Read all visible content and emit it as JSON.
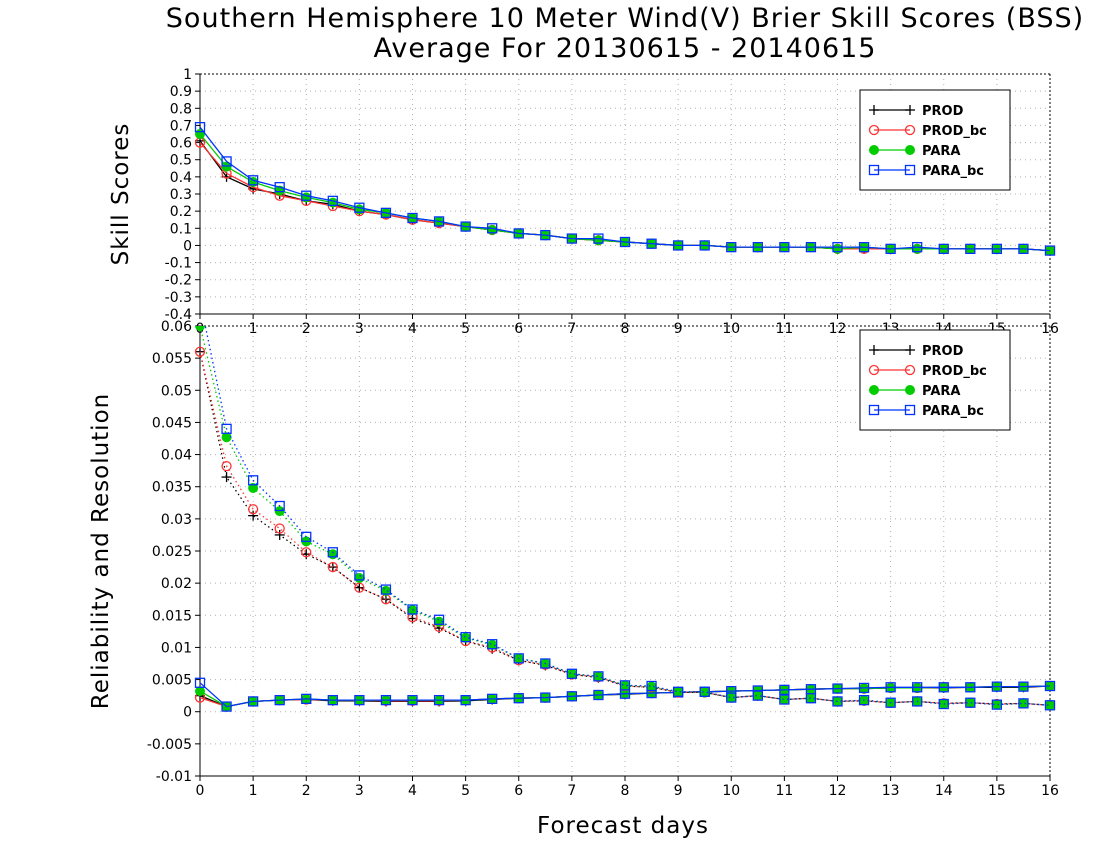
{
  "title": {
    "line1": "Southern Hemisphere 10 Meter Wind(V) Brier Skill Scores (BSS)",
    "line2": "Average For 20130615 - 20140615"
  },
  "chart_data": [
    {
      "type": "line",
      "panel": "top",
      "ylabel": "Skill Scores",
      "xlim": [
        0,
        16
      ],
      "ylim": [
        -0.4,
        1
      ],
      "yticks": [
        -0.4,
        -0.3,
        -0.2,
        -0.1,
        0,
        0.1,
        0.2,
        0.3,
        0.4,
        0.5,
        0.6,
        0.7,
        0.8,
        0.9,
        1
      ],
      "ytick_labels": [
        "-0.4",
        "-0.3",
        "-0.2",
        "-0.1",
        "0",
        "0.1",
        "0.2",
        "0.3",
        "0.4",
        "0.5",
        "0.6",
        "0.7",
        "0.8",
        "0.9",
        "1"
      ],
      "xticks": [
        0,
        1,
        2,
        3,
        4,
        5,
        6,
        7,
        8,
        9,
        10,
        11,
        12,
        13,
        14,
        15,
        16
      ],
      "xtick_labels": [
        "0",
        "1",
        "2",
        "3",
        "4",
        "5",
        "6",
        "7",
        "8",
        "9",
        "10",
        "11",
        "12",
        "13",
        "14",
        "15",
        "16"
      ],
      "grid": true,
      "legend_position": "top-right",
      "x": [
        0,
        0.5,
        1,
        1.5,
        2,
        2.5,
        3,
        3.5,
        4,
        4.5,
        5,
        5.5,
        6,
        6.5,
        7,
        7.5,
        8,
        8.5,
        9,
        9.5,
        10,
        10.5,
        11,
        11.5,
        12,
        12.5,
        13,
        13.5,
        14,
        14.5,
        15,
        15.5,
        16
      ],
      "series": [
        {
          "name": "PROD",
          "color": "#000000",
          "marker": "plus",
          "values": [
            0.61,
            0.4,
            0.33,
            0.3,
            0.26,
            0.24,
            0.2,
            0.18,
            0.15,
            0.13,
            0.11,
            0.09,
            0.07,
            0.06,
            0.04,
            0.03,
            0.02,
            0.01,
            0.0,
            0.0,
            -0.01,
            -0.01,
            -0.01,
            -0.01,
            -0.02,
            -0.02,
            -0.02,
            -0.02,
            -0.02,
            -0.02,
            -0.02,
            -0.02,
            -0.03
          ]
        },
        {
          "name": "PROD_bc",
          "color": "#ff3333",
          "marker": "open-circle",
          "values": [
            0.6,
            0.42,
            0.34,
            0.29,
            0.26,
            0.23,
            0.2,
            0.18,
            0.15,
            0.13,
            0.11,
            0.09,
            0.07,
            0.06,
            0.04,
            0.03,
            0.02,
            0.01,
            0.0,
            0.0,
            -0.01,
            -0.01,
            -0.01,
            -0.01,
            -0.02,
            -0.02,
            -0.02,
            -0.02,
            -0.02,
            -0.02,
            -0.02,
            -0.02,
            -0.03
          ]
        },
        {
          "name": "PARA",
          "color": "#00cc00",
          "marker": "filled-circle",
          "values": [
            0.65,
            0.46,
            0.37,
            0.32,
            0.28,
            0.25,
            0.21,
            0.19,
            0.16,
            0.14,
            0.11,
            0.09,
            0.07,
            0.06,
            0.04,
            0.03,
            0.02,
            0.01,
            0.0,
            0.0,
            -0.01,
            -0.01,
            -0.01,
            -0.01,
            -0.02,
            -0.01,
            -0.02,
            -0.02,
            -0.02,
            -0.02,
            -0.02,
            -0.02,
            -0.03
          ]
        },
        {
          "name": "PARA_bc",
          "color": "#0033ff",
          "marker": "open-square",
          "values": [
            0.69,
            0.49,
            0.38,
            0.34,
            0.29,
            0.26,
            0.22,
            0.19,
            0.16,
            0.14,
            0.11,
            0.1,
            0.07,
            0.06,
            0.04,
            0.04,
            0.02,
            0.01,
            0.0,
            0.0,
            -0.01,
            -0.01,
            -0.01,
            -0.01,
            -0.01,
            -0.01,
            -0.02,
            -0.01,
            -0.02,
            -0.02,
            -0.02,
            -0.02,
            -0.03
          ]
        }
      ]
    },
    {
      "type": "line",
      "panel": "bottom",
      "ylabel": "Reliability and Resolution",
      "xlabel": "Forecast days",
      "xlim": [
        0,
        16
      ],
      "ylim": [
        -0.01,
        0.06
      ],
      "yticks": [
        -0.01,
        -0.005,
        0,
        0.005,
        0.01,
        0.015,
        0.02,
        0.025,
        0.03,
        0.035,
        0.04,
        0.045,
        0.05,
        0.055,
        0.06
      ],
      "ytick_labels": [
        "-0.01",
        "-0.005",
        "0",
        "0.005",
        "0.01",
        "0.015",
        "0.02",
        "0.025",
        "0.03",
        "0.035",
        "0.04",
        "0.045",
        "0.05",
        "0.055",
        "0.06"
      ],
      "xticks": [
        0,
        1,
        2,
        3,
        4,
        5,
        6,
        7,
        8,
        9,
        10,
        11,
        12,
        13,
        14,
        15,
        16
      ],
      "xtick_labels": [
        "0",
        "1",
        "2",
        "3",
        "4",
        "5",
        "6",
        "7",
        "8",
        "9",
        "10",
        "11",
        "12",
        "13",
        "14",
        "15",
        "16"
      ],
      "grid": true,
      "legend_position": "top-right",
      "x": [
        0,
        0.5,
        1,
        1.5,
        2,
        2.5,
        3,
        3.5,
        4,
        4.5,
        5,
        5.5,
        6,
        6.5,
        7,
        7.5,
        8,
        8.5,
        9,
        9.5,
        10,
        10.5,
        11,
        11.5,
        12,
        12.5,
        13,
        13.5,
        14,
        14.5,
        15,
        15.5,
        16
      ],
      "series": [
        {
          "name": "PROD",
          "color": "#000000",
          "marker": "plus",
          "group": "reliability",
          "values": [
            0.0025,
            0.0008,
            0.0016,
            0.0018,
            0.0019,
            0.0017,
            0.0017,
            0.0016,
            0.0016,
            0.0016,
            0.0017,
            0.0019,
            0.0021,
            0.0022,
            0.0024,
            0.0026,
            0.0027,
            0.0029,
            0.003,
            0.0031,
            0.0032,
            0.0033,
            0.0034,
            0.0035,
            0.0036,
            0.0036,
            0.0037,
            0.0037,
            0.0037,
            0.0038,
            0.0038,
            0.0038,
            0.004
          ]
        },
        {
          "name": "PROD_bc",
          "color": "#ff3333",
          "marker": "open-circle",
          "group": "reliability",
          "values": [
            0.0022,
            0.0008,
            0.0016,
            0.0018,
            0.0019,
            0.0018,
            0.0018,
            0.0017,
            0.0017,
            0.0017,
            0.0018,
            0.002,
            0.0021,
            0.0022,
            0.0024,
            0.0026,
            0.0028,
            0.0029,
            0.003,
            0.0031,
            0.0032,
            0.0033,
            0.0034,
            0.0035,
            0.0036,
            0.0036,
            0.0037,
            0.0037,
            0.0038,
            0.0038,
            0.0039,
            0.0039,
            0.004
          ]
        },
        {
          "name": "PARA",
          "color": "#00cc00",
          "marker": "filled-circle",
          "group": "reliability",
          "values": [
            0.0032,
            0.0008,
            0.0016,
            0.0018,
            0.002,
            0.0018,
            0.0018,
            0.0018,
            0.0018,
            0.0018,
            0.0018,
            0.002,
            0.0021,
            0.0022,
            0.0024,
            0.0026,
            0.0028,
            0.0029,
            0.003,
            0.0031,
            0.0032,
            0.0033,
            0.0034,
            0.0035,
            0.0036,
            0.0036,
            0.0037,
            0.0037,
            0.0038,
            0.0038,
            0.0039,
            0.0039,
            0.004
          ]
        },
        {
          "name": "PARA_bc",
          "color": "#0033ff",
          "marker": "open-square",
          "group": "reliability",
          "values": [
            0.0045,
            0.0008,
            0.0016,
            0.0018,
            0.002,
            0.0018,
            0.0018,
            0.0018,
            0.0018,
            0.0018,
            0.0018,
            0.002,
            0.0021,
            0.0022,
            0.0024,
            0.0026,
            0.0028,
            0.0029,
            0.003,
            0.0031,
            0.0032,
            0.0033,
            0.0034,
            0.0035,
            0.0036,
            0.0037,
            0.0038,
            0.0038,
            0.0038,
            0.0038,
            0.0039,
            0.0039,
            0.004
          ]
        },
        {
          "name": "PROD",
          "color": "#000000",
          "marker": "plus",
          "group": "resolution",
          "values": [
            0.056,
            0.0365,
            0.0305,
            0.0275,
            0.0245,
            0.0225,
            0.0193,
            0.0175,
            0.0145,
            0.013,
            0.011,
            0.0098,
            0.008,
            0.0072,
            0.0058,
            0.0053,
            0.004,
            0.0038,
            0.003,
            0.003,
            0.0022,
            0.0025,
            0.0019,
            0.0021,
            0.0016,
            0.0017,
            0.0014,
            0.0016,
            0.0013,
            0.0014,
            0.0012,
            0.0013,
            0.001
          ]
        },
        {
          "name": "PROD_bc",
          "color": "#ff3333",
          "marker": "open-circle",
          "group": "resolution",
          "values": [
            0.056,
            0.0382,
            0.0315,
            0.0285,
            0.0248,
            0.0225,
            0.0193,
            0.0175,
            0.0147,
            0.0132,
            0.011,
            0.01,
            0.008,
            0.0073,
            0.0058,
            0.0054,
            0.004,
            0.0038,
            0.003,
            0.003,
            0.0022,
            0.0025,
            0.0019,
            0.0021,
            0.0016,
            0.0017,
            0.0014,
            0.0016,
            0.0013,
            0.0014,
            0.0012,
            0.0013,
            0.001
          ]
        },
        {
          "name": "PARA",
          "color": "#00cc00",
          "marker": "filled-circle",
          "group": "resolution",
          "values": [
            0.06,
            0.0427,
            0.0348,
            0.0312,
            0.0265,
            0.0245,
            0.0208,
            0.0188,
            0.0158,
            0.014,
            0.0115,
            0.0104,
            0.0083,
            0.0075,
            0.0059,
            0.0055,
            0.0041,
            0.0039,
            0.0031,
            0.003,
            0.0022,
            0.0025,
            0.0019,
            0.0021,
            0.0016,
            0.0018,
            0.0014,
            0.0016,
            0.0012,
            0.0014,
            0.0011,
            0.0013,
            0.001
          ]
        },
        {
          "name": "PARA_bc",
          "color": "#0033ff",
          "marker": "open-square",
          "group": "resolution",
          "values": [
            0.064,
            0.044,
            0.036,
            0.032,
            0.0272,
            0.0248,
            0.0212,
            0.019,
            0.0159,
            0.0143,
            0.0116,
            0.0105,
            0.0083,
            0.0075,
            0.0059,
            0.0055,
            0.0041,
            0.004,
            0.0031,
            0.0031,
            0.0022,
            0.0025,
            0.0019,
            0.0021,
            0.0016,
            0.0018,
            0.0014,
            0.0016,
            0.0012,
            0.0014,
            0.0011,
            0.0013,
            0.001
          ]
        }
      ]
    }
  ]
}
